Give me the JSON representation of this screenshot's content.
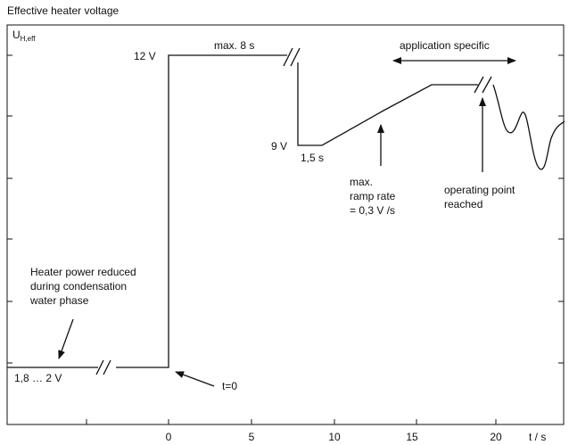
{
  "title": "Effective heater voltage",
  "y_axis_label": "U",
  "y_axis_subscript": "H,eff",
  "x_axis_unit": "t / s",
  "x_ticks": [
    "0",
    "5",
    "10",
    "15",
    "20"
  ],
  "levels": {
    "high": "12 V",
    "mid": "9 V",
    "low": "1,8 … 2 V"
  },
  "annotations": {
    "max_duration": "max. 8 s",
    "hold_time": "1,5 s",
    "application_specific": "application specific",
    "t_zero": "t=0",
    "condensation_line1": "Heater power reduced",
    "condensation_line2": "during condensation",
    "condensation_line3": "water phase",
    "ramp_line1": "max.",
    "ramp_line2": "ramp rate",
    "ramp_line3": "= 0,3 V /s",
    "operating_line1": "operating point",
    "operating_line2": "reached"
  }
}
